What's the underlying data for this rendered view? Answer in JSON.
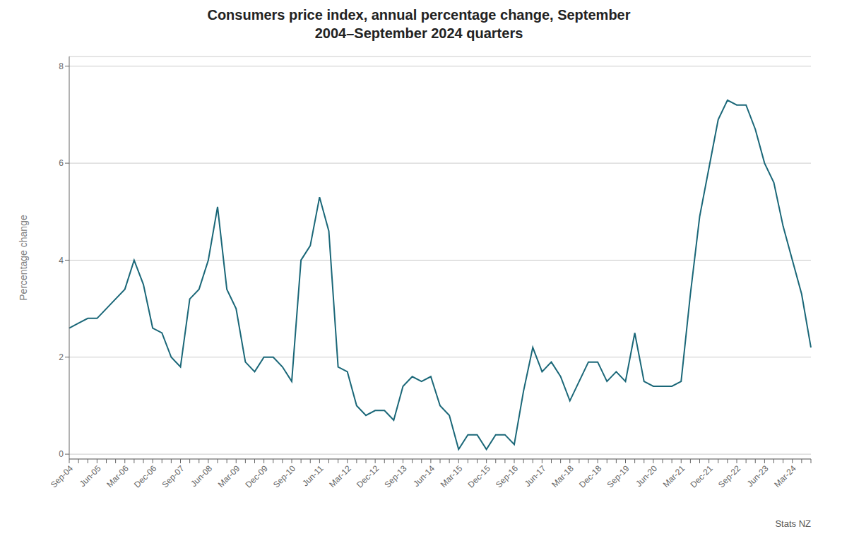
{
  "chart_data": {
    "type": "line",
    "title": "Consumers price index, annual percentage change, September\n2004–September 2024 quarters",
    "ylabel": "Percentage change",
    "source": "Stats NZ",
    "color": "#1a6778",
    "grid": true,
    "ylim": [
      -0.1,
      8.2
    ],
    "yticks": [
      0,
      2,
      4,
      6,
      8
    ],
    "categories": [
      "Sep-04",
      null,
      null,
      "Jun-05",
      null,
      null,
      "Mar-06",
      null,
      null,
      "Dec-06",
      null,
      null,
      "Sep-07",
      null,
      null,
      "Jun-08",
      null,
      null,
      "Mar-09",
      null,
      null,
      "Dec-09",
      null,
      null,
      "Sep-10",
      null,
      null,
      "Jun-11",
      null,
      null,
      "Mar-12",
      null,
      null,
      "Dec-12",
      null,
      null,
      "Sep-13",
      null,
      null,
      "Jun-14",
      null,
      null,
      "Mar-15",
      null,
      null,
      "Dec-15",
      null,
      null,
      "Sep-16",
      null,
      null,
      "Jun-17",
      null,
      null,
      "Mar-18",
      null,
      null,
      "Dec-18",
      null,
      null,
      "Sep-19",
      null,
      null,
      "Jun-20",
      null,
      null,
      "Mar-21",
      null,
      null,
      "Dec-21",
      null,
      null,
      "Sep-22",
      null,
      null,
      "Jun-23",
      null,
      null,
      "Mar-24",
      null,
      null
    ],
    "values": [
      2.6,
      2.7,
      2.8,
      2.8,
      3.0,
      3.2,
      3.4,
      4.0,
      3.5,
      2.6,
      2.5,
      2.0,
      1.8,
      3.2,
      3.4,
      4.0,
      5.1,
      3.4,
      3.0,
      1.9,
      1.7,
      2.0,
      2.0,
      1.8,
      1.5,
      4.0,
      4.3,
      5.3,
      4.6,
      1.8,
      1.7,
      1.0,
      0.8,
      0.9,
      0.9,
      0.7,
      1.4,
      1.6,
      1.5,
      1.6,
      1.0,
      0.8,
      0.1,
      0.4,
      0.4,
      0.1,
      0.4,
      0.4,
      0.2,
      1.3,
      2.2,
      1.7,
      1.9,
      1.6,
      1.1,
      1.5,
      1.9,
      1.9,
      1.5,
      1.7,
      1.5,
      2.5,
      1.5,
      1.4,
      1.4,
      1.4,
      1.5,
      3.3,
      4.9,
      5.9,
      6.9,
      7.3,
      7.2,
      7.2,
      6.7,
      6.0,
      5.6,
      4.7,
      4.0,
      3.3,
      2.2
    ]
  }
}
